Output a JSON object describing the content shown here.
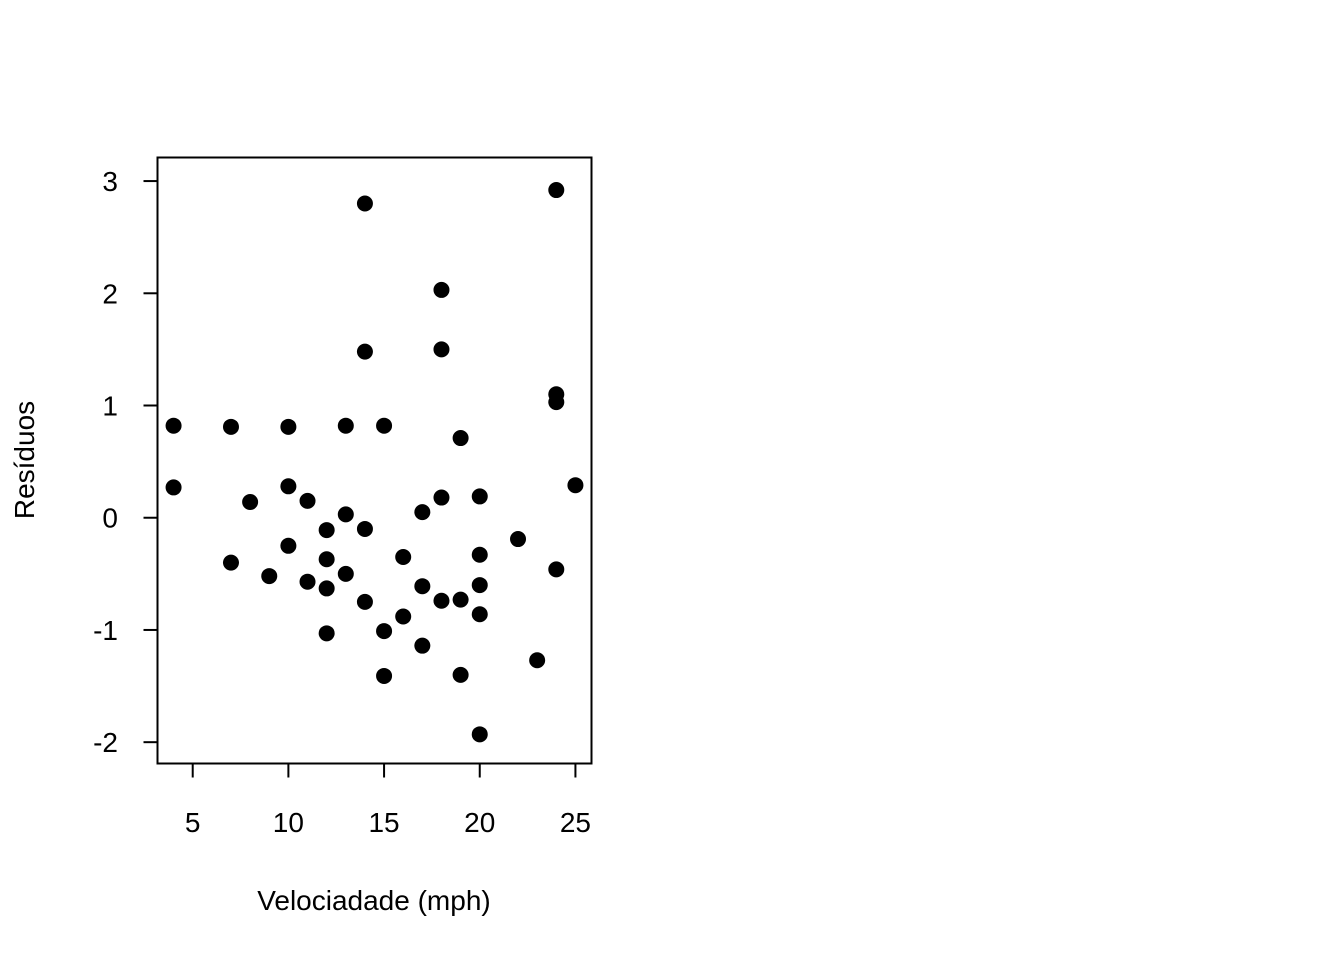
{
  "chart_data": {
    "type": "scatter",
    "title": "",
    "xlabel": "Velociadade (mph)",
    "ylabel": "Resíduos",
    "xlim": [
      3.16,
      25.84
    ],
    "ylim": [
      -2.19,
      3.21
    ],
    "xticks": [
      5,
      10,
      15,
      20,
      25
    ],
    "yticks": [
      -2,
      -1,
      0,
      1,
      2,
      3
    ],
    "grid": false,
    "legend": "none",
    "marker_color": "#000000",
    "points": [
      {
        "x": 4,
        "y": 0.82
      },
      {
        "x": 4,
        "y": 0.27
      },
      {
        "x": 7,
        "y": 0.81
      },
      {
        "x": 7,
        "y": -0.4
      },
      {
        "x": 8,
        "y": 0.14
      },
      {
        "x": 9,
        "y": -0.52
      },
      {
        "x": 10,
        "y": 0.81
      },
      {
        "x": 10,
        "y": 0.28
      },
      {
        "x": 10,
        "y": -0.25
      },
      {
        "x": 11,
        "y": 0.15
      },
      {
        "x": 11,
        "y": -0.57
      },
      {
        "x": 12,
        "y": -0.11
      },
      {
        "x": 12,
        "y": -0.37
      },
      {
        "x": 12,
        "y": -0.63
      },
      {
        "x": 12,
        "y": -1.03
      },
      {
        "x": 13,
        "y": 0.82
      },
      {
        "x": 13,
        "y": 0.03
      },
      {
        "x": 13,
        "y": -0.5
      },
      {
        "x": 14,
        "y": 2.8
      },
      {
        "x": 14,
        "y": 1.48
      },
      {
        "x": 14,
        "y": -0.1
      },
      {
        "x": 14,
        "y": -0.75
      },
      {
        "x": 15,
        "y": 0.82
      },
      {
        "x": 15,
        "y": -1.01
      },
      {
        "x": 15,
        "y": -1.41
      },
      {
        "x": 16,
        "y": -0.35
      },
      {
        "x": 16,
        "y": -0.88
      },
      {
        "x": 17,
        "y": 0.05
      },
      {
        "x": 17,
        "y": -0.61
      },
      {
        "x": 17,
        "y": -1.14
      },
      {
        "x": 18,
        "y": 2.03
      },
      {
        "x": 18,
        "y": 1.5
      },
      {
        "x": 18,
        "y": 0.18
      },
      {
        "x": 18,
        "y": -0.74
      },
      {
        "x": 19,
        "y": 0.71
      },
      {
        "x": 19,
        "y": -0.73
      },
      {
        "x": 19,
        "y": -1.4
      },
      {
        "x": 20,
        "y": 0.19
      },
      {
        "x": 20,
        "y": -0.33
      },
      {
        "x": 20,
        "y": -0.6
      },
      {
        "x": 20,
        "y": -0.86
      },
      {
        "x": 20,
        "y": -1.93
      },
      {
        "x": 22,
        "y": -0.19
      },
      {
        "x": 23,
        "y": -1.27
      },
      {
        "x": 24,
        "y": 2.92
      },
      {
        "x": 24,
        "y": 1.1
      },
      {
        "x": 24,
        "y": 1.03
      },
      {
        "x": 24,
        "y": -0.46
      },
      {
        "x": 25,
        "y": 0.29
      }
    ]
  }
}
